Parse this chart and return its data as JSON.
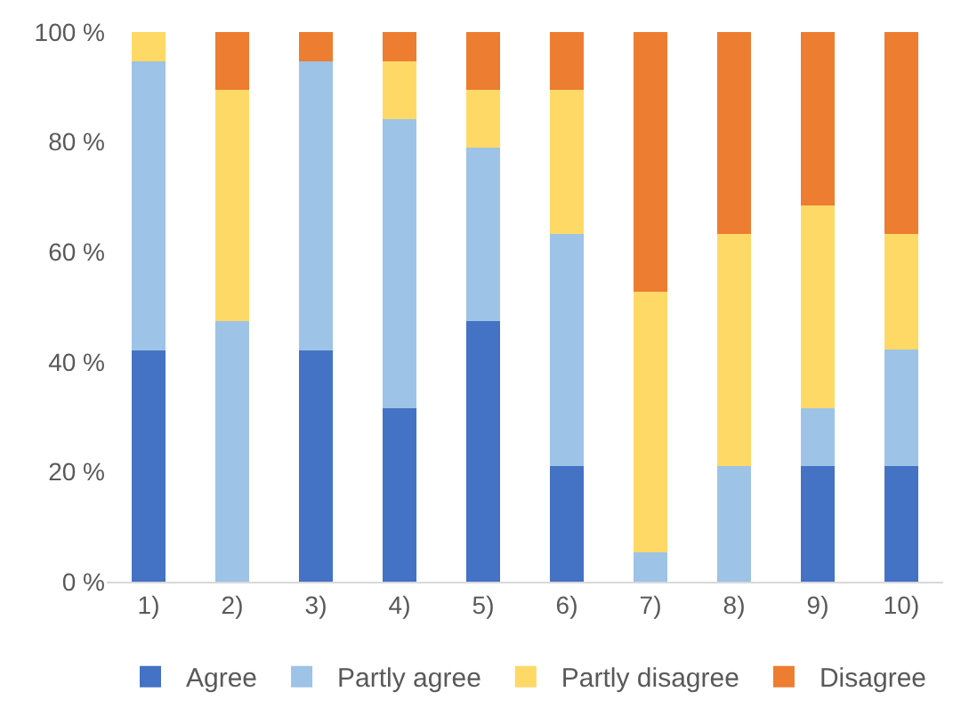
{
  "chart_data": {
    "type": "bar",
    "stacked": true,
    "categories": [
      "1)",
      "2)",
      "3)",
      "4)",
      "5)",
      "6)",
      "7)",
      "8)",
      "9)",
      "10)"
    ],
    "series": [
      {
        "name": "Agree",
        "color": "#4472c4",
        "values": [
          42.1,
          0,
          42.1,
          31.6,
          47.4,
          21.1,
          0,
          0,
          21.1,
          21.1
        ]
      },
      {
        "name": "Partly agree",
        "color": "#9dc3e6",
        "values": [
          52.6,
          47.4,
          52.6,
          52.6,
          31.6,
          42.1,
          5.3,
          21.1,
          10.5,
          21.1
        ]
      },
      {
        "name": "Partly disagree",
        "color": "#ffd966",
        "values": [
          5.3,
          42.1,
          0,
          10.5,
          10.5,
          26.3,
          47.4,
          42.1,
          36.8,
          21.1
        ]
      },
      {
        "name": "Disagree",
        "color": "#ed7d31",
        "values": [
          0,
          10.5,
          5.3,
          5.3,
          10.5,
          10.5,
          47.4,
          36.8,
          31.6,
          36.8
        ]
      }
    ],
    "ylim": [
      0,
      100
    ],
    "yticks": [
      {
        "value": 0,
        "label": "0 %"
      },
      {
        "value": 20,
        "label": "20 %"
      },
      {
        "value": 40,
        "label": "40 %"
      },
      {
        "value": 60,
        "label": "60 %"
      },
      {
        "value": 80,
        "label": "80 %"
      },
      {
        "value": 100,
        "label": "100 %"
      }
    ],
    "grid": false,
    "legend": "bottom"
  }
}
